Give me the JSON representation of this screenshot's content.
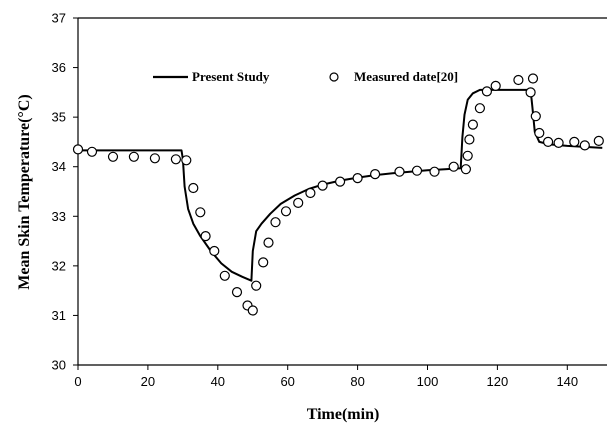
{
  "chart_data": {
    "type": "scatter",
    "title": "",
    "xlabel": "Time(min)",
    "ylabel": "Mean Skin Temperature(°C)",
    "xlim": [
      0,
      150
    ],
    "ylim": [
      30,
      37
    ],
    "xticks": [
      "0",
      "20",
      "40",
      "60",
      "80",
      "100",
      "120",
      "140"
    ],
    "yticks": [
      "30",
      "31",
      "32",
      "33",
      "34",
      "35",
      "36",
      "37"
    ],
    "grid": false,
    "legend_position": "top",
    "series": [
      {
        "name": "Present Study",
        "style": "line",
        "color": "#000000",
        "points": [
          [
            0,
            34.33
          ],
          [
            10,
            34.33
          ],
          [
            20,
            34.33
          ],
          [
            29.6,
            34.33
          ],
          [
            30,
            34.15
          ],
          [
            30.5,
            33.6
          ],
          [
            31.5,
            33.15
          ],
          [
            33,
            32.85
          ],
          [
            35,
            32.6
          ],
          [
            38,
            32.3
          ],
          [
            41,
            32.05
          ],
          [
            44,
            31.88
          ],
          [
            47,
            31.78
          ],
          [
            49.6,
            31.7
          ],
          [
            50,
            32.3
          ],
          [
            51,
            32.7
          ],
          [
            52.5,
            32.85
          ],
          [
            55,
            33.05
          ],
          [
            58,
            33.25
          ],
          [
            62,
            33.42
          ],
          [
            66,
            33.55
          ],
          [
            70,
            33.64
          ],
          [
            75,
            33.72
          ],
          [
            80,
            33.78
          ],
          [
            85,
            33.83
          ],
          [
            90,
            33.87
          ],
          [
            95,
            33.9
          ],
          [
            100,
            33.93
          ],
          [
            105,
            33.95
          ],
          [
            109.5,
            33.97
          ],
          [
            110,
            34.6
          ],
          [
            110.6,
            35.05
          ],
          [
            111.5,
            35.35
          ],
          [
            113,
            35.48
          ],
          [
            115,
            35.55
          ],
          [
            120,
            35.55
          ],
          [
            125,
            35.55
          ],
          [
            129.5,
            35.55
          ],
          [
            130,
            35.2
          ],
          [
            130.7,
            34.7
          ],
          [
            132,
            34.5
          ],
          [
            135,
            34.45
          ],
          [
            140,
            34.42
          ],
          [
            145,
            34.4
          ],
          [
            150,
            34.38
          ]
        ]
      },
      {
        "name": "Measured date[20]",
        "style": "marker",
        "color": "#000000",
        "points": [
          [
            0,
            34.35
          ],
          [
            4,
            34.3
          ],
          [
            10,
            34.2
          ],
          [
            16,
            34.2
          ],
          [
            22,
            34.17
          ],
          [
            28,
            34.15
          ],
          [
            31,
            34.13
          ],
          [
            33,
            33.57
          ],
          [
            35,
            33.08
          ],
          [
            36.5,
            32.6
          ],
          [
            39,
            32.3
          ],
          [
            42,
            31.8
          ],
          [
            45.5,
            31.47
          ],
          [
            48.5,
            31.2
          ],
          [
            50,
            31.1
          ],
          [
            51,
            31.6
          ],
          [
            53,
            32.07
          ],
          [
            54.5,
            32.47
          ],
          [
            56.5,
            32.88
          ],
          [
            59.5,
            33.1
          ],
          [
            63,
            33.27
          ],
          [
            66.5,
            33.47
          ],
          [
            70,
            33.62
          ],
          [
            75,
            33.7
          ],
          [
            80,
            33.77
          ],
          [
            85,
            33.85
          ],
          [
            92,
            33.9
          ],
          [
            97,
            33.92
          ],
          [
            102,
            33.9
          ],
          [
            107.5,
            34.0
          ],
          [
            111,
            33.95
          ],
          [
            111.5,
            34.22
          ],
          [
            112,
            34.55
          ],
          [
            113,
            34.85
          ],
          [
            115,
            35.18
          ],
          [
            117,
            35.52
          ],
          [
            119.5,
            35.63
          ],
          [
            126,
            35.75
          ],
          [
            129.5,
            35.5
          ],
          [
            130.2,
            35.78
          ],
          [
            131,
            35.02
          ],
          [
            132,
            34.68
          ],
          [
            134.5,
            34.5
          ],
          [
            137.5,
            34.48
          ],
          [
            142,
            34.5
          ],
          [
            145,
            34.43
          ],
          [
            149,
            34.52
          ]
        ]
      }
    ]
  }
}
